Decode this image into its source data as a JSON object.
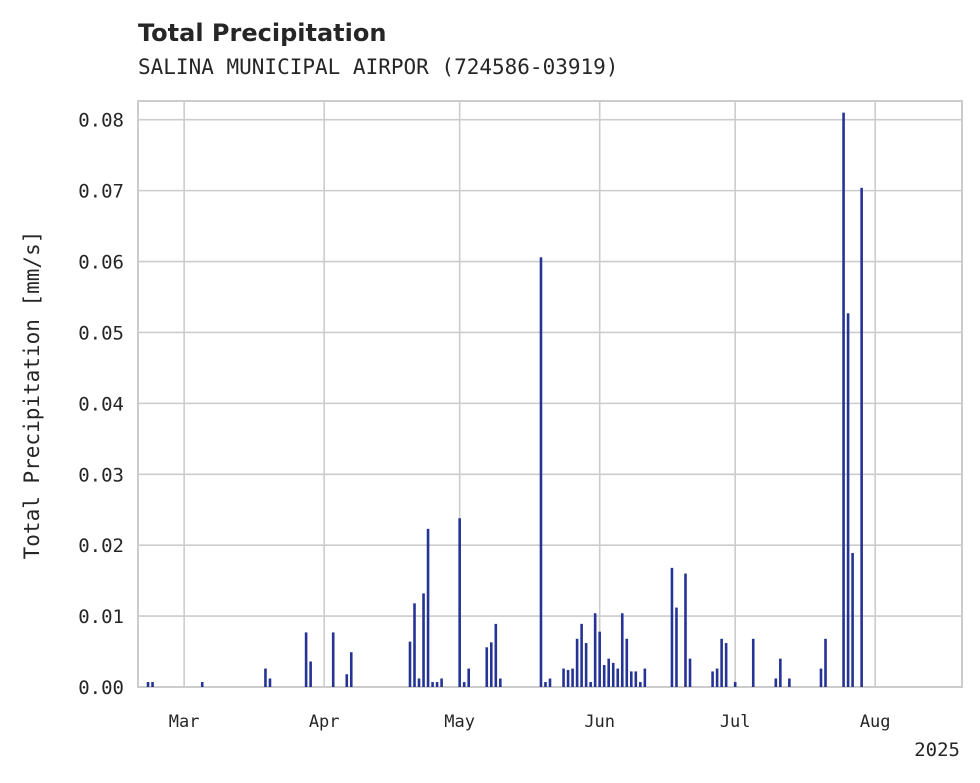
{
  "chart_data": {
    "type": "bar",
    "title": "Total Precipitation",
    "subtitle": "SALINA MUNICIPAL AIRPOR (724586-03919)",
    "xlabel": "",
    "ylabel": "Total Precipitation [mm/s]",
    "ylim": [
      0,
      0.0825
    ],
    "xlim": [
      "2025-02-19",
      "2025-08-20"
    ],
    "yticks": [
      "0.00",
      "0.01",
      "0.02",
      "0.03",
      "0.04",
      "0.05",
      "0.06",
      "0.07",
      "0.08"
    ],
    "xticks": [
      {
        "date": "2025-03-01",
        "label": "Mar"
      },
      {
        "date": "2025-04-01",
        "label": "Apr"
      },
      {
        "date": "2025-05-01",
        "label": "May"
      },
      {
        "date": "2025-06-01",
        "label": "Jun"
      },
      {
        "date": "2025-07-01",
        "label": "Jul"
      },
      {
        "date": "2025-08-01",
        "label": "Aug"
      }
    ],
    "year_label": "2025",
    "grid": true,
    "color": "#253494",
    "series": [
      {
        "points": [
          {
            "x": "2025-02-21",
            "y": 0.0007
          },
          {
            "x": "2025-02-22",
            "y": 0.0007
          },
          {
            "x": "2025-03-05",
            "y": 0.0007
          },
          {
            "x": "2025-03-19",
            "y": 0.0026
          },
          {
            "x": "2025-03-20",
            "y": 0.0012
          },
          {
            "x": "2025-03-28",
            "y": 0.0077
          },
          {
            "x": "2025-03-29",
            "y": 0.0036
          },
          {
            "x": "2025-04-03",
            "y": 0.0077
          },
          {
            "x": "2025-04-06",
            "y": 0.0018
          },
          {
            "x": "2025-04-07",
            "y": 0.0049
          },
          {
            "x": "2025-04-20",
            "y": 0.0064
          },
          {
            "x": "2025-04-21",
            "y": 0.0118
          },
          {
            "x": "2025-04-22",
            "y": 0.0012
          },
          {
            "x": "2025-04-23",
            "y": 0.0132
          },
          {
            "x": "2025-04-24",
            "y": 0.0223
          },
          {
            "x": "2025-04-25",
            "y": 0.0007
          },
          {
            "x": "2025-04-26",
            "y": 0.0007
          },
          {
            "x": "2025-04-27",
            "y": 0.0012
          },
          {
            "x": "2025-05-01",
            "y": 0.0238
          },
          {
            "x": "2025-05-02",
            "y": 0.0007
          },
          {
            "x": "2025-05-03",
            "y": 0.0026
          },
          {
            "x": "2025-05-07",
            "y": 0.0056
          },
          {
            "x": "2025-05-08",
            "y": 0.0063
          },
          {
            "x": "2025-05-09",
            "y": 0.0089
          },
          {
            "x": "2025-05-10",
            "y": 0.0012
          },
          {
            "x": "2025-05-19",
            "y": 0.0606
          },
          {
            "x": "2025-05-20",
            "y": 0.0007
          },
          {
            "x": "2025-05-21",
            "y": 0.0012
          },
          {
            "x": "2025-05-24",
            "y": 0.0026
          },
          {
            "x": "2025-05-25",
            "y": 0.0024
          },
          {
            "x": "2025-05-26",
            "y": 0.0026
          },
          {
            "x": "2025-05-27",
            "y": 0.0068
          },
          {
            "x": "2025-05-28",
            "y": 0.0089
          },
          {
            "x": "2025-05-29",
            "y": 0.0062
          },
          {
            "x": "2025-05-30",
            "y": 0.0007
          },
          {
            "x": "2025-05-31",
            "y": 0.0104
          },
          {
            "x": "2025-06-01",
            "y": 0.0078
          },
          {
            "x": "2025-06-02",
            "y": 0.0031
          },
          {
            "x": "2025-06-03",
            "y": 0.0012
          },
          {
            "x": "2025-06-03",
            "y": 0.004
          },
          {
            "x": "2025-06-04",
            "y": 0.0034
          },
          {
            "x": "2025-06-05",
            "y": 0.0026
          },
          {
            "x": "2025-06-06",
            "y": 0.0012
          },
          {
            "x": "2025-06-06",
            "y": 0.0104
          },
          {
            "x": "2025-06-07",
            "y": 0.0068
          },
          {
            "x": "2025-06-08",
            "y": 0.0022
          },
          {
            "x": "2025-06-09",
            "y": 0.0022
          },
          {
            "x": "2025-06-10",
            "y": 0.0007
          },
          {
            "x": "2025-06-11",
            "y": 0.0026
          },
          {
            "x": "2025-06-17",
            "y": 0.0168
          },
          {
            "x": "2025-06-18",
            "y": 0.0112
          },
          {
            "x": "2025-06-20",
            "y": 0.016
          },
          {
            "x": "2025-06-21",
            "y": 0.004
          },
          {
            "x": "2025-06-26",
            "y": 0.0022
          },
          {
            "x": "2025-06-27",
            "y": 0.0026
          },
          {
            "x": "2025-06-28",
            "y": 0.0068
          },
          {
            "x": "2025-06-29",
            "y": 0.0062
          },
          {
            "x": "2025-07-01",
            "y": 0.0007
          },
          {
            "x": "2025-07-05",
            "y": 0.0068
          },
          {
            "x": "2025-07-10",
            "y": 0.0012
          },
          {
            "x": "2025-07-11",
            "y": 0.004
          },
          {
            "x": "2025-07-13",
            "y": 0.0012
          },
          {
            "x": "2025-07-20",
            "y": 0.0026
          },
          {
            "x": "2025-07-21",
            "y": 0.0068
          },
          {
            "x": "2025-07-25",
            "y": 0.081
          },
          {
            "x": "2025-07-26",
            "y": 0.0527
          },
          {
            "x": "2025-07-27",
            "y": 0.0189
          },
          {
            "x": "2025-07-29",
            "y": 0.0704
          }
        ]
      }
    ]
  }
}
